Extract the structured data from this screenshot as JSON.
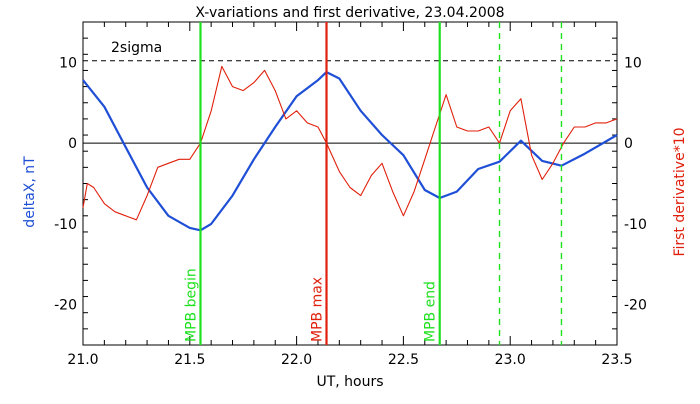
{
  "chart_data": {
    "type": "line",
    "title": "X-variations and first derivative, 23.04.2008",
    "xlabel": "UT, hours",
    "ylabel_left": "deltaX, nT",
    "ylabel_right": "First derivative*10",
    "xlim": [
      21.0,
      23.5
    ],
    "ylim": [
      -25,
      15
    ],
    "x_ticks": [
      "21.0",
      "21.5",
      "22.0",
      "22.5",
      "23.0",
      "23.5"
    ],
    "y_ticks": [
      "10",
      "0",
      "-10",
      "-20"
    ],
    "threshold": {
      "label": "2sigma",
      "value": 10.2
    },
    "colors": {
      "deltaX": "#1f4fd6",
      "derivative": "#e0200c",
      "begin": "#1ee11e",
      "max": "#e0200c",
      "end": "#1ee11e"
    },
    "markers": [
      {
        "label": "MPB begin",
        "x": 21.55,
        "style": "solid",
        "color": "#1ee11e"
      },
      {
        "label": "MPB max",
        "x": 22.14,
        "style": "solid",
        "color": "#e0200c"
      },
      {
        "label": "MPB end",
        "x": 22.67,
        "style": "solid",
        "color": "#1ee11e"
      },
      {
        "label": "",
        "x": 22.95,
        "style": "dashed",
        "color": "#1ee11e"
      },
      {
        "label": "",
        "x": 23.24,
        "style": "dashed",
        "color": "#1ee11e"
      }
    ],
    "series": [
      {
        "name": "deltaX",
        "color": "#1f4fd6",
        "x": [
          21.0,
          21.1,
          21.2,
          21.3,
          21.4,
          21.5,
          21.55,
          21.6,
          21.7,
          21.8,
          21.9,
          22.0,
          22.1,
          22.14,
          22.2,
          22.3,
          22.4,
          22.5,
          22.6,
          22.67,
          22.75,
          22.85,
          22.95,
          23.05,
          23.15,
          23.24,
          23.35,
          23.5
        ],
        "y": [
          7.8,
          4.5,
          -0.5,
          -5.5,
          -9.0,
          -10.5,
          -10.8,
          -10.0,
          -6.5,
          -2.0,
          2.0,
          5.8,
          7.8,
          8.8,
          8.0,
          4.0,
          1.0,
          -1.5,
          -5.8,
          -6.8,
          -6.0,
          -3.2,
          -2.3,
          0.3,
          -2.2,
          -2.8,
          -1.3,
          1.0
        ]
      },
      {
        "name": "First derivative*10",
        "color": "#e0200c",
        "x": [
          21.0,
          21.02,
          21.05,
          21.1,
          21.15,
          21.2,
          21.25,
          21.3,
          21.35,
          21.4,
          21.45,
          21.5,
          21.55,
          21.6,
          21.65,
          21.7,
          21.75,
          21.8,
          21.85,
          21.9,
          21.95,
          22.0,
          22.05,
          22.1,
          22.14,
          22.2,
          22.25,
          22.3,
          22.35,
          22.4,
          22.45,
          22.5,
          22.55,
          22.6,
          22.65,
          22.7,
          22.75,
          22.8,
          22.85,
          22.9,
          22.95,
          23.0,
          23.05,
          23.1,
          23.15,
          23.2,
          23.25,
          23.3,
          23.35,
          23.4,
          23.45,
          23.5
        ],
        "y": [
          -8.0,
          -5.0,
          -5.5,
          -7.5,
          -8.5,
          -9.0,
          -9.5,
          -6.5,
          -3.0,
          -2.5,
          -2.0,
          -2.0,
          0.0,
          4.0,
          9.5,
          7.0,
          6.5,
          7.5,
          9.0,
          6.5,
          3.0,
          4.0,
          2.5,
          2.0,
          0.0,
          -3.5,
          -5.5,
          -6.5,
          -4.0,
          -2.5,
          -6.0,
          -9.0,
          -6.0,
          -2.0,
          2.0,
          6.0,
          2.0,
          1.5,
          1.5,
          2.0,
          0.0,
          4.0,
          5.5,
          -1.5,
          -4.5,
          -2.5,
          0.0,
          2.0,
          2.0,
          2.5,
          2.5,
          3.0
        ]
      }
    ],
    "grid": false
  }
}
